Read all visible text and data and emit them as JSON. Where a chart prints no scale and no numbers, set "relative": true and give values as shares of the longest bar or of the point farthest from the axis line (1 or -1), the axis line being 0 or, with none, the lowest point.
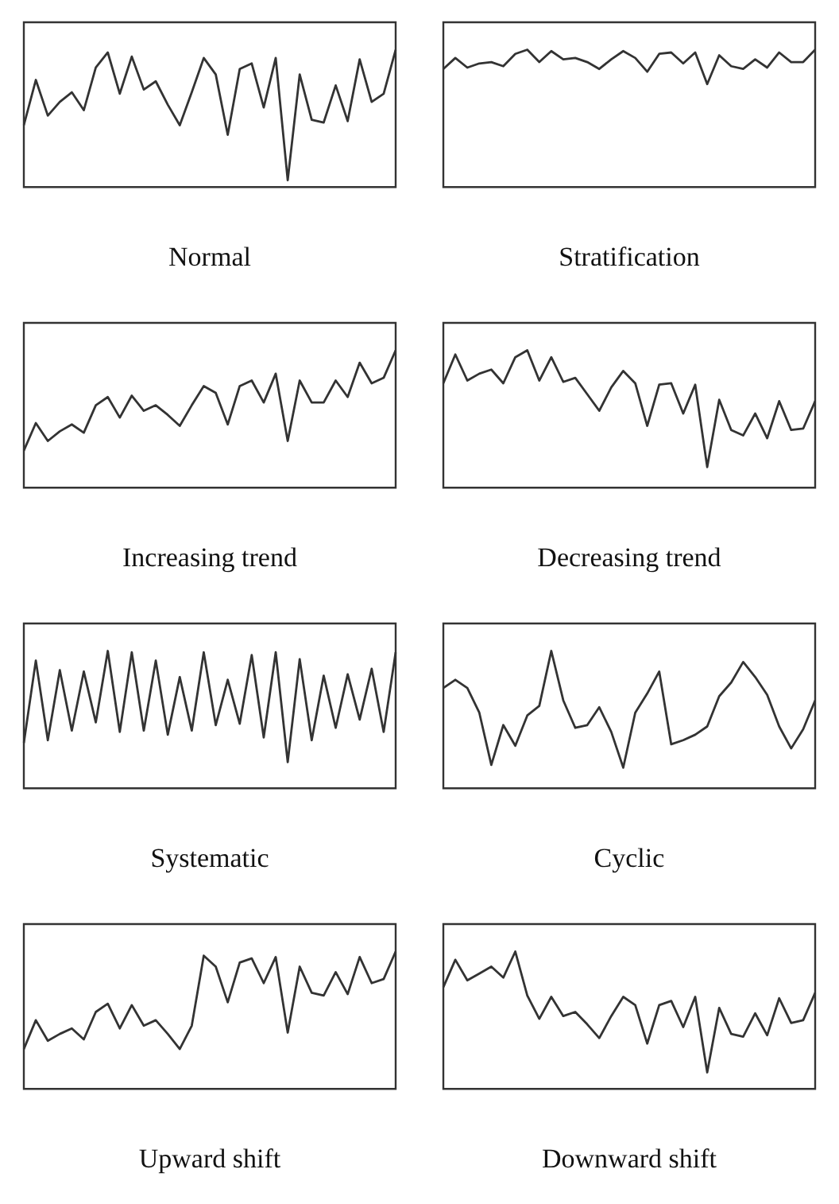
{
  "chart_data": [
    {
      "type": "line",
      "xlabel": "Normal",
      "relative": true,
      "grid": false,
      "legend": false,
      "marker": "none",
      "categories": [
        null,
        null,
        null,
        null,
        null,
        null,
        null,
        null,
        null,
        null,
        null,
        null,
        null,
        null,
        null,
        null,
        null,
        null,
        null,
        null,
        null,
        null,
        null,
        null,
        null,
        null,
        null,
        null,
        null,
        null,
        null,
        null
      ],
      "series": [
        {
          "color": "#333333",
          "values": [
            0.45,
            0.78,
            0.52,
            0.62,
            0.69,
            0.56,
            0.87,
            0.98,
            0.68,
            0.95,
            0.71,
            0.77,
            0.6,
            0.45,
            0.69,
            0.94,
            0.82,
            0.38,
            0.86,
            0.9,
            0.58,
            0.94,
            0.05,
            0.82,
            0.49,
            0.47,
            0.74,
            0.48,
            0.93,
            0.62,
            0.68,
            1.0
          ]
        }
      ]
    },
    {
      "type": "line",
      "xlabel": "Stratification",
      "relative": true,
      "grid": false,
      "legend": false,
      "marker": "none",
      "categories": [
        null,
        null,
        null,
        null,
        null,
        null,
        null,
        null,
        null,
        null,
        null,
        null,
        null,
        null,
        null,
        null,
        null,
        null,
        null,
        null,
        null,
        null,
        null,
        null,
        null,
        null,
        null,
        null,
        null,
        null,
        null,
        null
      ],
      "series": [
        {
          "color": "#333333",
          "values": [
            0.86,
            0.94,
            0.87,
            0.9,
            0.91,
            0.88,
            0.97,
            1.0,
            0.91,
            0.99,
            0.93,
            0.94,
            0.91,
            0.86,
            0.93,
            0.99,
            0.94,
            0.84,
            0.97,
            0.98,
            0.9,
            0.98,
            0.75,
            0.96,
            0.88,
            0.86,
            0.93,
            0.87,
            0.98,
            0.91,
            0.91,
            1.0
          ]
        }
      ]
    },
    {
      "type": "line",
      "xlabel": "Increasing trend",
      "relative": true,
      "grid": false,
      "legend": false,
      "marker": "none",
      "categories": [
        null,
        null,
        null,
        null,
        null,
        null,
        null,
        null,
        null,
        null,
        null,
        null,
        null,
        null,
        null,
        null,
        null,
        null,
        null,
        null,
        null,
        null,
        null,
        null,
        null,
        null,
        null,
        null,
        null,
        null,
        null,
        null
      ],
      "series": [
        {
          "color": "#333333",
          "values": [
            0.27,
            0.47,
            0.34,
            0.41,
            0.46,
            0.4,
            0.6,
            0.66,
            0.51,
            0.67,
            0.56,
            0.6,
            0.53,
            0.45,
            0.6,
            0.74,
            0.69,
            0.46,
            0.74,
            0.78,
            0.62,
            0.83,
            0.34,
            0.78,
            0.62,
            0.62,
            0.78,
            0.66,
            0.91,
            0.76,
            0.8,
            1.0
          ]
        }
      ]
    },
    {
      "type": "line",
      "xlabel": "Decreasing trend",
      "relative": true,
      "grid": false,
      "legend": false,
      "marker": "none",
      "categories": [
        null,
        null,
        null,
        null,
        null,
        null,
        null,
        null,
        null,
        null,
        null,
        null,
        null,
        null,
        null,
        null,
        null,
        null,
        null,
        null,
        null,
        null,
        null,
        null,
        null,
        null,
        null,
        null,
        null,
        null,
        null,
        null
      ],
      "series": [
        {
          "color": "#333333",
          "values": [
            0.76,
            0.97,
            0.78,
            0.83,
            0.86,
            0.76,
            0.95,
            1.0,
            0.78,
            0.95,
            0.77,
            0.8,
            0.68,
            0.56,
            0.73,
            0.85,
            0.76,
            0.45,
            0.75,
            0.76,
            0.54,
            0.75,
            0.15,
            0.64,
            0.42,
            0.38,
            0.54,
            0.36,
            0.63,
            0.42,
            0.43,
            0.63
          ]
        }
      ]
    },
    {
      "type": "line",
      "xlabel": "Systematic",
      "relative": true,
      "grid": false,
      "legend": false,
      "marker": "none",
      "categories": [
        null,
        null,
        null,
        null,
        null,
        null,
        null,
        null,
        null,
        null,
        null,
        null,
        null,
        null,
        null,
        null,
        null,
        null,
        null,
        null,
        null,
        null,
        null,
        null,
        null,
        null,
        null,
        null,
        null,
        null,
        null,
        null
      ],
      "series": [
        {
          "color": "#333333",
          "values": [
            0.33,
            0.93,
            0.35,
            0.86,
            0.42,
            0.85,
            0.48,
            1.0,
            0.41,
            0.99,
            0.42,
            0.93,
            0.39,
            0.81,
            0.42,
            0.99,
            0.46,
            0.79,
            0.47,
            0.97,
            0.37,
            0.99,
            0.19,
            0.94,
            0.35,
            0.82,
            0.44,
            0.83,
            0.5,
            0.87,
            0.41,
            0.99
          ]
        }
      ]
    },
    {
      "type": "line",
      "xlabel": "Cyclic",
      "relative": true,
      "grid": false,
      "legend": false,
      "marker": "none",
      "categories": [
        null,
        null,
        null,
        null,
        null,
        null,
        null,
        null,
        null,
        null,
        null,
        null,
        null,
        null,
        null,
        null,
        null,
        null,
        null,
        null,
        null,
        null,
        null,
        null,
        null,
        null,
        null,
        null,
        null,
        null,
        null,
        null
      ],
      "series": [
        {
          "color": "#333333",
          "values": [
            0.73,
            0.79,
            0.73,
            0.55,
            0.17,
            0.46,
            0.31,
            0.53,
            0.6,
            1.0,
            0.64,
            0.44,
            0.46,
            0.59,
            0.41,
            0.15,
            0.55,
            0.69,
            0.85,
            0.32,
            0.35,
            0.39,
            0.45,
            0.67,
            0.77,
            0.92,
            0.81,
            0.68,
            0.45,
            0.29,
            0.43,
            0.64
          ]
        }
      ]
    },
    {
      "type": "line",
      "xlabel": "Upward shift",
      "relative": true,
      "grid": false,
      "legend": false,
      "marker": "none",
      "categories": [
        null,
        null,
        null,
        null,
        null,
        null,
        null,
        null,
        null,
        null,
        null,
        null,
        null,
        null,
        null,
        null,
        null,
        null,
        null,
        null,
        null,
        null,
        null,
        null,
        null,
        null,
        null,
        null,
        null,
        null,
        null,
        null
      ],
      "series": [
        {
          "color": "#333333",
          "values": [
            0.29,
            0.5,
            0.35,
            0.4,
            0.44,
            0.36,
            0.56,
            0.62,
            0.44,
            0.61,
            0.46,
            0.5,
            0.4,
            0.29,
            0.46,
            0.97,
            0.89,
            0.63,
            0.92,
            0.95,
            0.77,
            0.96,
            0.41,
            0.89,
            0.7,
            0.68,
            0.85,
            0.69,
            0.96,
            0.77,
            0.8,
            1.0
          ]
        }
      ]
    },
    {
      "type": "line",
      "xlabel": "Downward shift",
      "relative": true,
      "grid": false,
      "legend": false,
      "marker": "none",
      "categories": [
        null,
        null,
        null,
        null,
        null,
        null,
        null,
        null,
        null,
        null,
        null,
        null,
        null,
        null,
        null,
        null,
        null,
        null,
        null,
        null,
        null,
        null,
        null,
        null,
        null,
        null,
        null,
        null,
        null,
        null,
        null,
        null
      ],
      "series": [
        {
          "color": "#333333",
          "values": [
            0.74,
            0.94,
            0.79,
            0.84,
            0.89,
            0.81,
            1.0,
            0.68,
            0.51,
            0.67,
            0.53,
            0.56,
            0.47,
            0.37,
            0.53,
            0.67,
            0.61,
            0.33,
            0.61,
            0.64,
            0.45,
            0.67,
            0.12,
            0.59,
            0.4,
            0.38,
            0.55,
            0.39,
            0.66,
            0.48,
            0.5,
            0.7
          ]
        }
      ]
    }
  ]
}
